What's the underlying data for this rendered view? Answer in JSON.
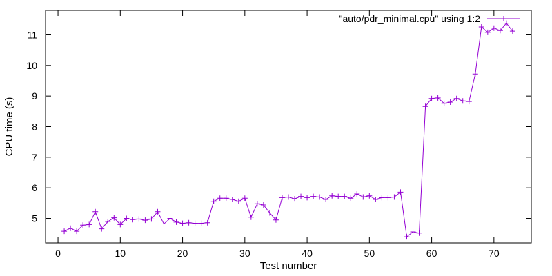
{
  "chart_data": {
    "type": "line",
    "title": "",
    "xlabel": "Test number",
    "ylabel": "CPU time (s)",
    "xlim": [
      -2,
      76
    ],
    "ylim": [
      4.2,
      11.8
    ],
    "xticks": [
      0,
      10,
      20,
      30,
      40,
      50,
      60,
      70
    ],
    "yticks": [
      5,
      6,
      7,
      8,
      9,
      10,
      11
    ],
    "grid": false,
    "legend_position": "top-right",
    "series": [
      {
        "name": "\"auto/pdr_minimal.cpu\" using 1:2",
        "color": "#9400d3",
        "marker": "plus",
        "x": [
          1,
          2,
          3,
          4,
          5,
          6,
          7,
          8,
          9,
          10,
          11,
          12,
          13,
          14,
          15,
          16,
          17,
          18,
          19,
          20,
          21,
          22,
          23,
          24,
          25,
          26,
          27,
          28,
          29,
          30,
          31,
          32,
          33,
          34,
          35,
          36,
          37,
          38,
          39,
          40,
          41,
          42,
          43,
          44,
          45,
          46,
          47,
          48,
          49,
          50,
          51,
          52,
          53,
          54,
          55,
          56,
          57,
          58,
          59,
          60,
          61,
          62,
          63,
          64,
          65,
          66,
          67,
          68,
          69,
          70,
          71,
          72,
          73
        ],
        "y": [
          4.58,
          4.68,
          4.58,
          4.78,
          4.8,
          5.22,
          4.66,
          4.9,
          5.02,
          4.8,
          5.0,
          4.96,
          4.98,
          4.94,
          4.98,
          5.22,
          4.82,
          5.0,
          4.88,
          4.84,
          4.86,
          4.84,
          4.84,
          4.86,
          5.56,
          5.66,
          5.66,
          5.62,
          5.56,
          5.66,
          5.04,
          5.48,
          5.44,
          5.18,
          4.95,
          5.68,
          5.7,
          5.64,
          5.72,
          5.68,
          5.72,
          5.7,
          5.62,
          5.74,
          5.72,
          5.72,
          5.66,
          5.8,
          5.7,
          5.74,
          5.62,
          5.68,
          5.68,
          5.7,
          5.86,
          4.4,
          4.56,
          4.52,
          8.66,
          8.92,
          8.94,
          8.76,
          8.8,
          8.92,
          8.84,
          8.82,
          9.72,
          11.26,
          11.08,
          11.22,
          11.14,
          11.38,
          11.12
        ]
      }
    ]
  }
}
